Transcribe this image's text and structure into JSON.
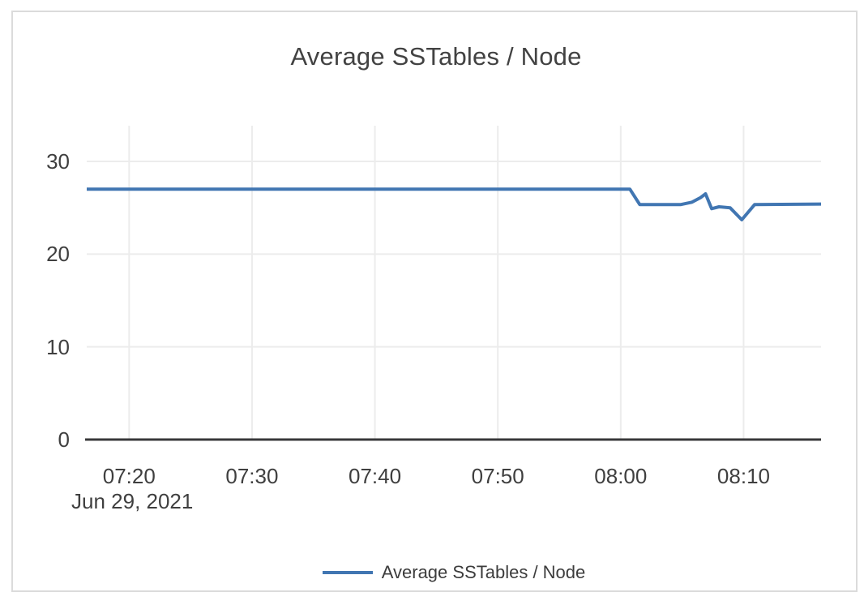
{
  "chart_data": {
    "type": "line",
    "title": "Average SSTables / Node",
    "x_axis_date_label": "Jun 29, 2021",
    "x_unit": "minutes after 07:00 on Jun 29, 2021",
    "xlim_minutes": [
      16.55,
      76.3
    ],
    "ylim": [
      0,
      33.85
    ],
    "grid": true,
    "legend_position": "bottom-center",
    "x_ticks": [
      {
        "minutes": 20,
        "label": "07:20"
      },
      {
        "minutes": 30,
        "label": "07:30"
      },
      {
        "minutes": 40,
        "label": "07:40"
      },
      {
        "minutes": 50,
        "label": "07:50"
      },
      {
        "minutes": 60,
        "label": "08:00"
      },
      {
        "minutes": 70,
        "label": "08:10"
      }
    ],
    "y_ticks": [
      0,
      10,
      20,
      30
    ],
    "series": [
      {
        "name": "Average SSTables / Node",
        "color": "#4176b2",
        "points": [
          [
            16.55,
            27.0
          ],
          [
            60.75,
            27.0
          ],
          [
            61.55,
            25.35
          ],
          [
            64.9,
            25.35
          ],
          [
            65.8,
            25.6
          ],
          [
            66.5,
            26.1
          ],
          [
            66.9,
            26.5
          ],
          [
            67.4,
            24.9
          ],
          [
            68.0,
            25.1
          ],
          [
            68.9,
            25.0
          ],
          [
            69.85,
            23.7
          ],
          [
            70.9,
            25.35
          ],
          [
            76.3,
            25.4
          ]
        ]
      }
    ]
  },
  "colors": {
    "series_blue": "#4176b2",
    "title_text": "#424242",
    "tick_text": "#3f3f3f",
    "grid_line": "#ececec",
    "axis_line": "#38383a",
    "card_border": "#dbdbdb",
    "background": "#ffffff"
  },
  "legend": {
    "label": "Average SSTables / Node"
  }
}
